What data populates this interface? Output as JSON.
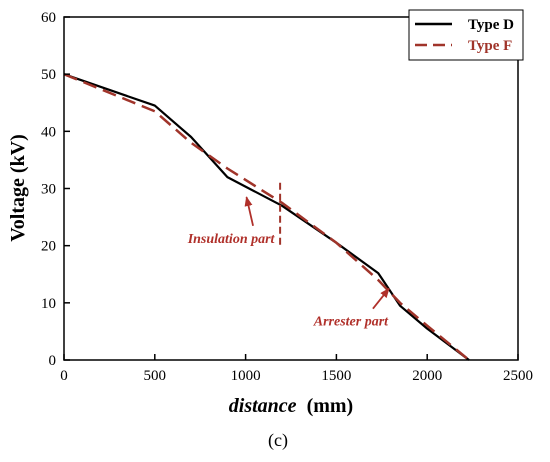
{
  "chart_data": {
    "type": "line",
    "xlabel_italic": "distance",
    "xlabel_unit": "(mm)",
    "ylabel": "Voltage (kV)",
    "xlim": [
      0,
      2500
    ],
    "ylim": [
      0,
      60
    ],
    "x_ticks": [
      0,
      500,
      1000,
      1500,
      2000,
      2500
    ],
    "y_ticks": [
      0,
      10,
      20,
      30,
      40,
      50,
      60
    ],
    "grid": false,
    "legend_position": "top-right",
    "series": [
      {
        "name": "Type D",
        "color": "#000000",
        "dash": "solid",
        "x": [
          0,
          500,
          700,
          900,
          1200,
          1500,
          1730,
          1850,
          2000,
          2230
        ],
        "y": [
          50,
          44.5,
          39,
          32,
          27,
          20.5,
          15.2,
          9.5,
          5.5,
          0
        ]
      },
      {
        "name": "Type F",
        "color": "#a0342a",
        "dash": "dashed",
        "x": [
          0,
          500,
          700,
          900,
          1200,
          1500,
          1730,
          1850,
          2000,
          2230
        ],
        "y": [
          50,
          43.5,
          38,
          33.5,
          27.5,
          20.5,
          14,
          10,
          6,
          0
        ]
      }
    ],
    "divider": {
      "x": 1190,
      "y_range": [
        20,
        31
      ],
      "color": "#a0342a"
    },
    "annotations": [
      {
        "text": "Insulation part",
        "x": 1005,
        "y": 28.5,
        "text_x": 920,
        "text_y": 20.5,
        "color": "#b0302a"
      },
      {
        "text": "Arrester part",
        "x": 1790,
        "y": 12.5,
        "text_x": 1580,
        "text_y": 6,
        "color": "#b0302a"
      }
    ],
    "panel_label": "(c)"
  }
}
